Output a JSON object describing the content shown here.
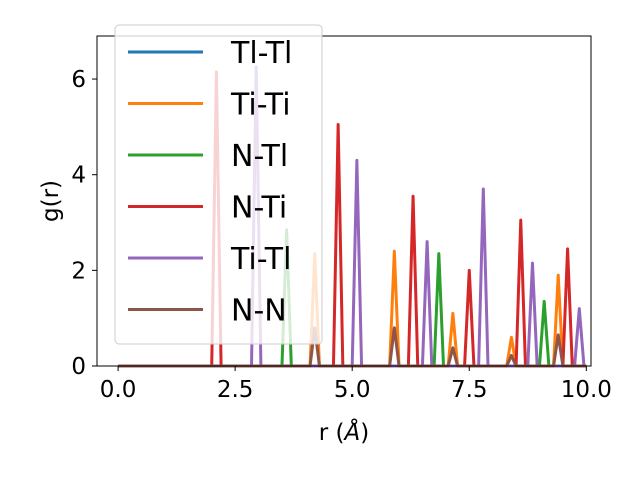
{
  "chart_data": {
    "type": "line",
    "xlabel_main": "r (",
    "xlabel_unit": "Å",
    "xlabel_close": ")",
    "ylabel": "g(r)",
    "xlim": [
      -0.45,
      10.1
    ],
    "ylim": [
      0,
      6.9
    ],
    "xticks": [
      0.0,
      2.5,
      5.0,
      7.5,
      10.0
    ],
    "xtick_labels": [
      "0.0",
      "2.5",
      "5.0",
      "7.5",
      "10.0"
    ],
    "yticks": [
      0,
      2,
      4,
      6
    ],
    "ytick_labels": [
      "0",
      "2",
      "4",
      "6"
    ],
    "grid": false,
    "legend_position": "upper-left",
    "peak_halfwidth": 0.1,
    "x_start": 0.0,
    "x_end": 10.0,
    "series": [
      {
        "name": "Tl-Tl",
        "color": "#1f77b4",
        "peaks": []
      },
      {
        "name": "Ti-Ti",
        "color": "#ff7f0e",
        "peaks": [
          [
            4.2,
            2.35
          ],
          [
            5.9,
            2.4
          ],
          [
            7.15,
            1.1
          ],
          [
            8.4,
            0.6
          ],
          [
            9.4,
            1.9
          ]
        ]
      },
      {
        "name": "N-Tl",
        "color": "#2ca02c",
        "peaks": [
          [
            3.6,
            2.85
          ],
          [
            6.85,
            2.35
          ],
          [
            9.1,
            1.35
          ]
        ]
      },
      {
        "name": "N-Ti",
        "color": "#d62728",
        "peaks": [
          [
            2.1,
            6.15
          ],
          [
            4.7,
            5.05
          ],
          [
            6.3,
            3.55
          ],
          [
            7.5,
            2.0
          ],
          [
            8.6,
            3.05
          ],
          [
            9.6,
            2.45
          ]
        ]
      },
      {
        "name": "Ti-Tl",
        "color": "#9467bd",
        "peaks": [
          [
            2.95,
            6.25
          ],
          [
            5.1,
            4.3
          ],
          [
            6.6,
            2.6
          ],
          [
            7.8,
            3.7
          ],
          [
            8.85,
            2.15
          ],
          [
            9.85,
            1.2
          ]
        ]
      },
      {
        "name": "N-N",
        "color": "#8c564b",
        "peaks": [
          [
            4.2,
            0.8
          ],
          [
            5.9,
            0.8
          ],
          [
            7.15,
            0.38
          ],
          [
            8.4,
            0.22
          ],
          [
            9.4,
            0.65
          ]
        ]
      }
    ]
  }
}
